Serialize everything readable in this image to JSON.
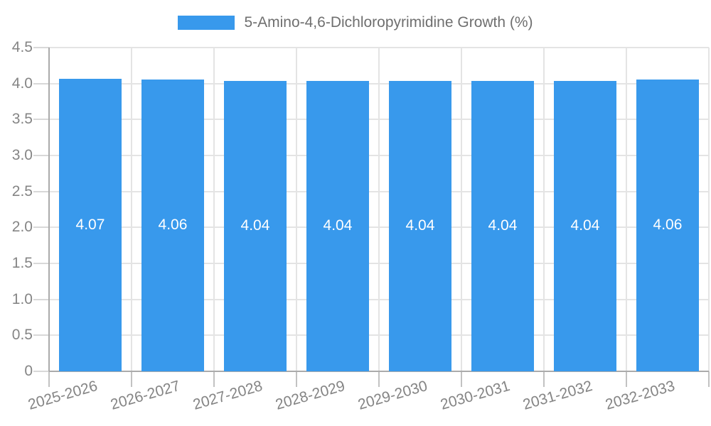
{
  "legend": {
    "label": "5-Amino-4,6-Dichloropyrimidine Growth (%)",
    "swatch_color": "#3899ec"
  },
  "chart_data": {
    "type": "bar",
    "title": "5-Amino-4,6-Dichloropyrimidine Growth (%)",
    "categories": [
      "2025-2026",
      "2026-2027",
      "2027-2028",
      "2028-2029",
      "2029-2030",
      "2030-2031",
      "2031-2032",
      "2032-2033"
    ],
    "values": [
      4.07,
      4.06,
      4.04,
      4.04,
      4.04,
      4.04,
      4.04,
      4.06
    ],
    "value_labels": [
      "4.07",
      "4.06",
      "4.04",
      "4.04",
      "4.04",
      "4.04",
      "4.04",
      "4.06"
    ],
    "xlabel": "",
    "ylabel": "",
    "ylim": [
      0,
      4.5
    ],
    "ytick_step": 0.5,
    "ytick_labels": [
      "4.5",
      "4.0",
      "3.5",
      "3.0",
      "2.5",
      "2.0",
      "1.5",
      "1.0",
      "0.5",
      "0"
    ],
    "grid": true,
    "grid_vertical": true,
    "legend_position": "top-center",
    "bar_color": "#3899ec",
    "value_label_color": "#ffffff",
    "axis_label_color": "#858585",
    "value_label_position": "inside-center",
    "xlabel_rotation_deg": -16
  }
}
